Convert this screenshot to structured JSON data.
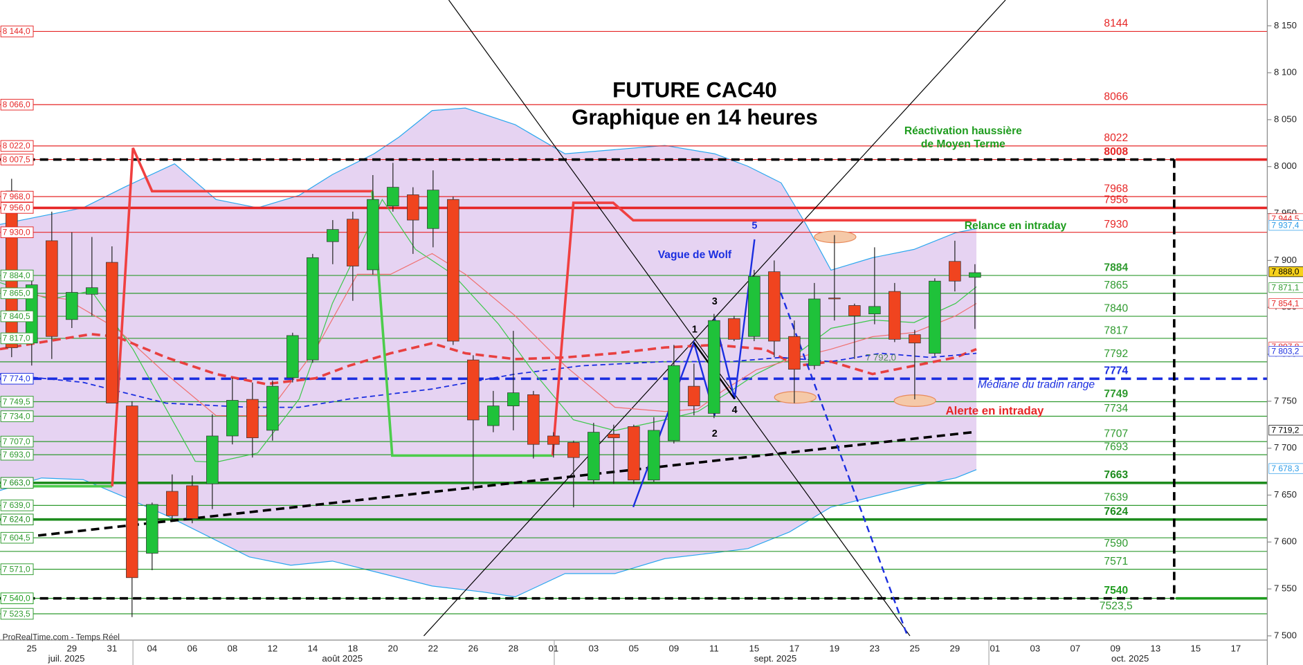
{
  "chart_data": {
    "type": "candlestick",
    "categories": [
      null,
      "25",
      null,
      "29",
      null,
      "31",
      null,
      "04",
      null,
      "06",
      null,
      "08",
      null,
      "12",
      null,
      "14",
      null,
      "18",
      null,
      "20",
      null,
      "22",
      null,
      "26",
      null,
      "28",
      null,
      "01",
      null,
      "03",
      null,
      "05",
      null,
      "09",
      null,
      "11",
      null,
      "15",
      null,
      "17",
      null,
      "19",
      null,
      "23",
      null,
      "25",
      null,
      "29",
      null,
      "01",
      null,
      "03",
      null,
      "07",
      null,
      "09",
      null,
      "13",
      null,
      "15",
      null,
      "17"
    ],
    "months": [
      "juil. 2025",
      "août 2025",
      "sept. 2025",
      "oct. 2025"
    ],
    "open": [
      7974,
      7812,
      7921,
      7837,
      7864,
      7898,
      7745,
      7588,
      7654,
      7660,
      7662,
      7713,
      7752,
      7719,
      7775,
      7794,
      7920,
      7944,
      7890,
      7958,
      7970,
      7934,
      7965,
      7794,
      7724,
      7745,
      7757,
      7713,
      7706,
      7666,
      7715,
      7723,
      7666,
      7708,
      7766,
      7737,
      7838,
      7819,
      7888,
      7819,
      7788,
      7860,
      7852,
      7843,
      7867,
      7821,
      7801,
      7899,
      7882,
      null,
      null,
      null,
      null,
      null,
      null,
      null,
      null,
      null,
      null,
      null,
      null,
      null
    ],
    "high": [
      7987,
      7885,
      7952,
      7930,
      7925,
      7915,
      7750,
      7642,
      7672,
      7671,
      7736,
      7775,
      7770,
      7772,
      7823,
      7907,
      7943,
      7952,
      7991,
      8004,
      7978,
      7996,
      7968,
      7799,
      7761,
      7825,
      7761,
      7717,
      7708,
      7727,
      7725,
      7725,
      7733,
      7810,
      7790,
      7843,
      7841,
      7890,
      7900,
      7836,
      7876,
      7927,
      7854,
      7914,
      7876,
      7826,
      7881,
      7921,
      7896,
      null,
      null,
      null,
      null,
      null,
      null,
      null,
      null,
      null,
      null,
      null,
      null,
      null
    ],
    "low": [
      7797,
      7788,
      7795,
      7828,
      7841,
      7748,
      7520,
      7570,
      7624,
      7620,
      7635,
      7704,
      7690,
      7708,
      7770,
      7791,
      7896,
      7857,
      7885,
      7952,
      7907,
      7914,
      7810,
      7655,
      7717,
      7719,
      7689,
      7690,
      7637,
      7662,
      7662,
      7662,
      7664,
      7705,
      7735,
      7732,
      7814,
      7814,
      7797,
      7748,
      7784,
      7836,
      7795,
      7832,
      7813,
      7752,
      7798,
      7867,
      7827,
      null,
      null,
      null,
      null,
      null,
      null,
      null,
      null,
      null,
      null,
      null,
      null,
      null
    ],
    "close": [
      7807,
      7874,
      7819,
      7866,
      7871,
      7748,
      7562,
      7640,
      7628,
      7625,
      7713,
      7751,
      7711,
      7766,
      7820,
      7903,
      7933,
      7894,
      7965,
      7978,
      7943,
      7975,
      7814,
      7730,
      7745,
      7759,
      7704,
      7704,
      7690,
      7717,
      7711,
      7666,
      7719,
      7788,
      7745,
      7836,
      7816,
      7883,
      7814,
      7784,
      7859,
      7859,
      7841,
      7851,
      7816,
      7812,
      7878,
      7878,
      7887,
      null,
      null,
      null,
      null,
      null,
      null,
      null,
      null,
      null,
      null,
      null,
      null,
      null
    ],
    "up_color": "#1fc23a",
    "down_color": "#f0441f",
    "ylim": [
      7497.3,
      8177.5
    ],
    "yticks": [
      {
        "value": 7500,
        "label": "7 500"
      },
      {
        "value": 7550,
        "label": "7 550"
      },
      {
        "value": 7600,
        "label": "7 600"
      },
      {
        "value": 7650,
        "label": "7 650"
      },
      {
        "value": 7700,
        "label": "7 700"
      },
      {
        "value": 7750,
        "label": "7 750"
      },
      {
        "value": 7800,
        "label": "7 800"
      },
      {
        "value": 7850,
        "label": "7 850"
      },
      {
        "value": 7900,
        "label": "7 900"
      },
      {
        "value": 7950,
        "label": "7 950"
      },
      {
        "value": 8000,
        "label": "8 000"
      },
      {
        "value": 8050,
        "label": "8 050"
      },
      {
        "value": 8100,
        "label": "8 100"
      },
      {
        "value": 8150,
        "label": "8 150"
      }
    ],
    "levels": [
      {
        "value": 8144,
        "left_label": "8 144,0",
        "right_label": "8144",
        "color": "#e62626"
      },
      {
        "value": 8066,
        "left_label": "8 066,0",
        "right_label": "8066",
        "color": "#e62626"
      },
      {
        "value": 8022,
        "left_label": "8 022,0",
        "right_label": "8022",
        "color": "#e62626"
      },
      {
        "value": 8007.5,
        "left_label": "8 007,5",
        "right_label": "8008",
        "color": "#e62626",
        "bold": true,
        "zone": true
      },
      {
        "value": 7968,
        "left_label": "7 968,0",
        "right_label": "7968",
        "color": "#e62626"
      },
      {
        "value": 7956,
        "left_label": "7 956,0",
        "right_label": "7956",
        "color": "#e62626",
        "width": 3
      },
      {
        "value": 7930,
        "left_label": "7 930,0",
        "right_label": "7930",
        "color": "#e62626"
      },
      {
        "value": 7884,
        "left_label": "7 884,0",
        "right_label": "7884",
        "color": "#2e9a2e",
        "bold": true
      },
      {
        "value": 7865,
        "left_label": "7 865,0",
        "right_label": "7865",
        "color": "#2e9a2e"
      },
      {
        "value": 7840.5,
        "left_label": "7 840,5",
        "right_label": "7840",
        "color": "#2e9a2e"
      },
      {
        "value": 7817,
        "left_label": "7 817,0",
        "right_label": "7817",
        "color": "#2e9a2e"
      },
      {
        "value": 7792,
        "right_label": "7792",
        "color": "#2e9a2e"
      },
      {
        "value": 7774,
        "left_label": "7 774,0",
        "right_label": "7774",
        "color": "#1b2ee0",
        "bold": true,
        "width": 3,
        "dashed": true
      },
      {
        "value": 7749.5,
        "left_label": "7 749,5",
        "right_label": "7749",
        "color": "#2e9a2e",
        "bold": true
      },
      {
        "value": 7734,
        "left_label": "7 734,0",
        "right_label": "7734",
        "color": "#2e9a2e"
      },
      {
        "value": 7707,
        "left_label": "7 707,0",
        "right_label": "7707",
        "color": "#2e9a2e"
      },
      {
        "value": 7693,
        "left_label": "7 693,0",
        "right_label": "7693",
        "color": "#2e9a2e"
      },
      {
        "value": 7663,
        "left_label": "7 663,0",
        "right_label": "7663",
        "color": "#1e8c1e",
        "bold": true,
        "width": 3
      },
      {
        "value": 7639,
        "left_label": "7 639,0",
        "right_label": "7639",
        "color": "#2e9a2e"
      },
      {
        "value": 7624,
        "left_label": "7 624,0",
        "right_label": "7624",
        "color": "#1e8c1e",
        "bold": true,
        "width": 3
      },
      {
        "value": 7604.5,
        "left_label": "7 604,5",
        "color": "#2e9a2e"
      },
      {
        "value": 7590,
        "right_label": "7590",
        "color": "#2e9a2e"
      },
      {
        "value": 7571,
        "left_label": "7 571,0",
        "right_label": "7571",
        "color": "#2e9a2e"
      },
      {
        "value": 7540,
        "left_label": "7 540,0",
        "right_label": "7540",
        "color": "#1e9c1e",
        "bold": true,
        "zone": true
      },
      {
        "value": 7523.5,
        "left_label": "7 523,5",
        "right_label": "7523,5",
        "color": "#2e9a2e"
      }
    ],
    "price_tags": [
      {
        "value": 7944.5,
        "label": "7 944,5",
        "color": "#e62626"
      },
      {
        "value": 7937.4,
        "label": "7 937,4",
        "color": "#2a9be8"
      },
      {
        "value": 7888,
        "label": "7 888,0",
        "color": "#000000",
        "background": "#f7d21b"
      },
      {
        "value": 7871.1,
        "label": "7 871,1",
        "color": "#2e9a2e"
      },
      {
        "value": 7854.1,
        "label": "7 854,1",
        "color": "#e62626"
      },
      {
        "value": 7807.8,
        "label": "7 807,8",
        "color": "#e62626"
      },
      {
        "value": 7803.2,
        "label": "7 803,2",
        "color": "#1b2ee0"
      },
      {
        "value": 7719.2,
        "label": "7 719,2",
        "color": "#000000"
      },
      {
        "value": 7678.3,
        "label": "7 678,3",
        "color": "#2a9be8"
      }
    ],
    "annotations": [
      {
        "text": "FUTURE CAC40",
        "color": "#000000"
      },
      {
        "text": "Graphique en 14 heures",
        "color": "#000000"
      },
      {
        "text": "Réactivation haussière",
        "color": "#1e9c1e"
      },
      {
        "text": "de Moyen Terme",
        "color": "#1e9c1e"
      },
      {
        "text": "Relance en intraday",
        "color": "#1e9c1e"
      },
      {
        "text": "Vague de Wolf",
        "color": "#1b2ee0"
      },
      {
        "text": "1",
        "color": "#000000"
      },
      {
        "text": "2",
        "color": "#000000"
      },
      {
        "text": "3",
        "color": "#000000"
      },
      {
        "text": "4",
        "color": "#000000"
      },
      {
        "text": "5",
        "color": "#1b2ee0"
      },
      {
        "text": "Médiane du tradin range",
        "color": "#1b2ee0"
      },
      {
        "text": "Alerte en intraday",
        "color": "#e62626"
      },
      {
        "text": "7 792,0",
        "color": "#5a8a5a"
      },
      {
        "text": "ProRealTime.com - Temps Réel",
        "color": "#333333"
      }
    ]
  }
}
